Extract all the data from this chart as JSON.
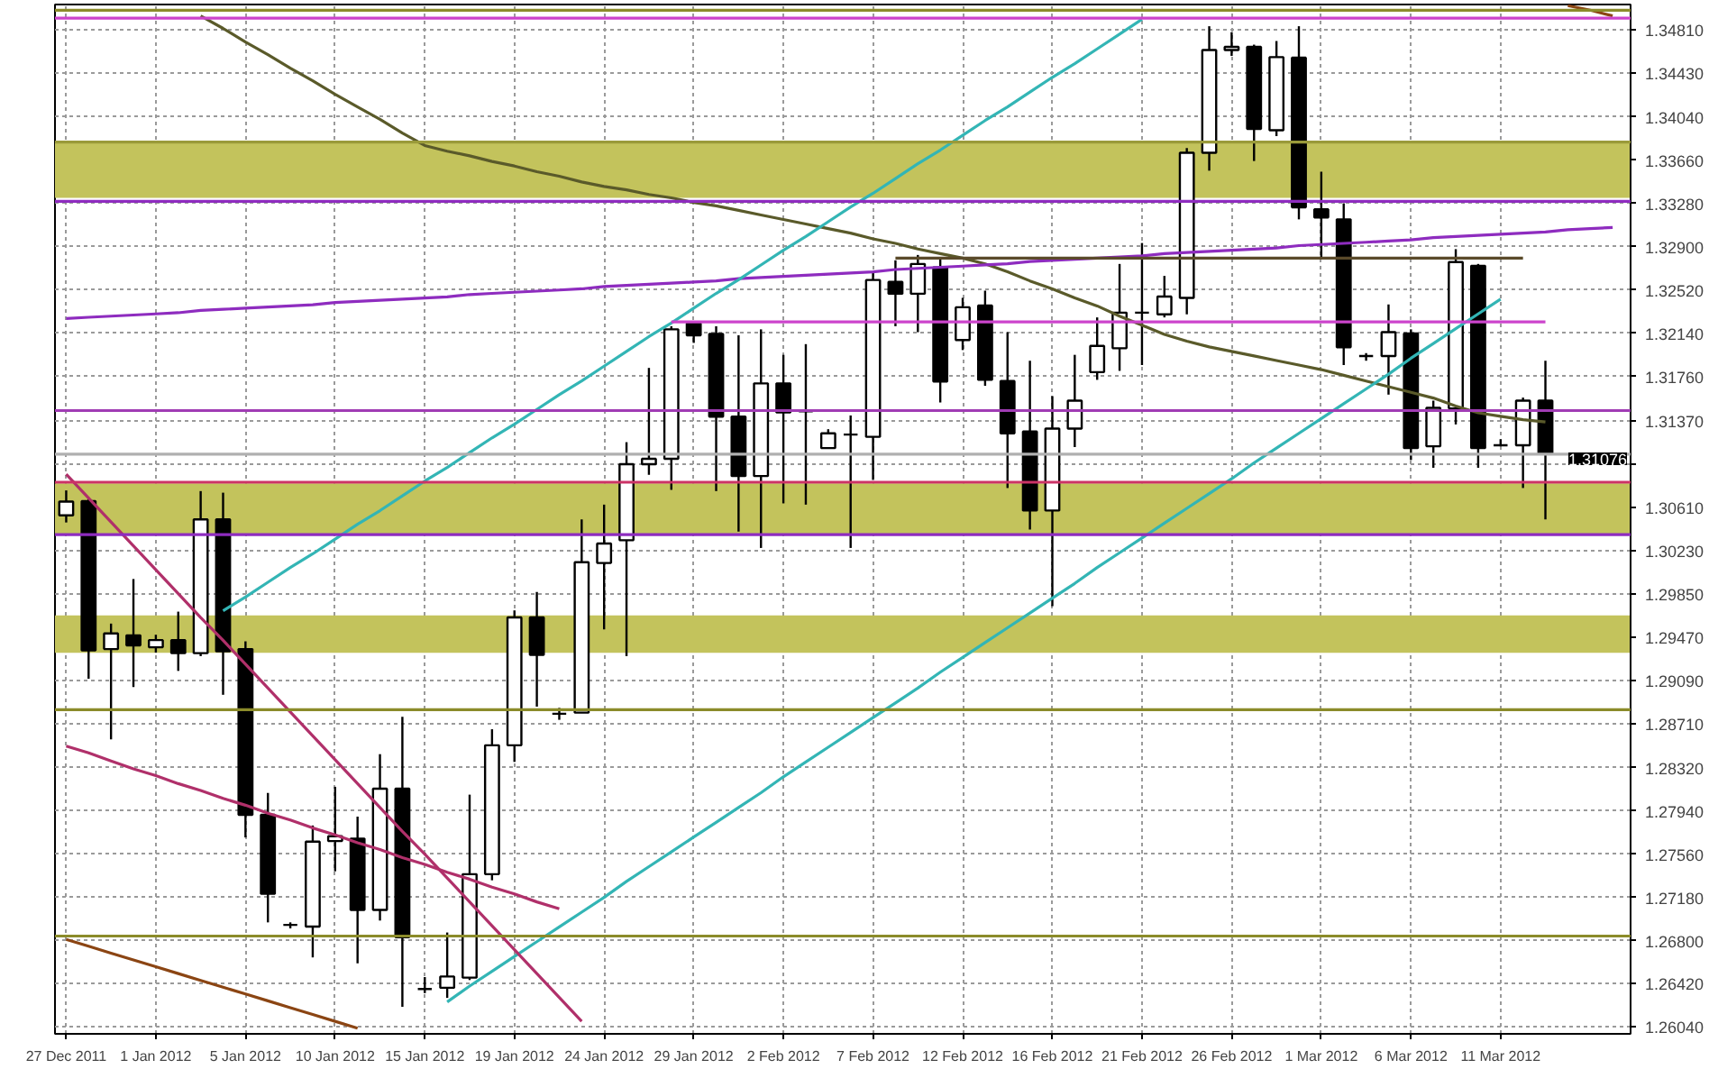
{
  "chart_data": {
    "type": "candlestick",
    "categories": [
      "27 Dec 2011",
      null,
      null,
      null,
      "1 Jan 2012",
      null,
      null,
      null,
      "5 Jan 2012",
      null,
      null,
      null,
      "10 Jan 2012",
      null,
      null,
      null,
      "15 Jan 2012",
      null,
      null,
      null,
      "19 Jan 2012",
      null,
      null,
      null,
      "24 Jan 2012",
      null,
      null,
      null,
      "29 Jan 2012",
      null,
      null,
      null,
      "2 Feb 2012",
      null,
      null,
      null,
      "7 Feb 2012",
      null,
      null,
      null,
      "12 Feb 2012",
      null,
      null,
      null,
      "16 Feb 2012",
      null,
      null,
      null,
      "21 Feb 2012",
      null,
      null,
      null,
      "26 Feb 2012",
      null,
      null,
      null,
      "1 Mar 2012",
      null,
      null,
      null,
      "6 Mar 2012",
      null,
      null,
      null,
      "11 Mar 2012",
      null,
      null,
      null,
      null,
      null
    ],
    "ohlc": [
      [
        1.30539,
        1.30758,
        1.30476,
        1.3066
      ],
      [
        1.30664,
        1.30696,
        1.29102,
        1.29352
      ],
      [
        1.29363,
        1.29587,
        1.28569,
        1.295
      ],
      [
        1.29484,
        1.29979,
        1.29029,
        1.29395
      ],
      [
        1.29379,
        1.29489,
        1.29332,
        1.29442
      ],
      [
        1.29442,
        1.29692,
        1.29171,
        1.29327
      ],
      [
        1.29327,
        1.30752,
        1.29301,
        1.30503
      ],
      [
        1.30503,
        1.30738,
        1.28961,
        1.29343
      ],
      [
        1.29363,
        1.29431,
        1.27707,
        1.27906
      ],
      [
        1.27906,
        1.28098,
        1.2696,
        1.27211
      ],
      [
        1.26938,
        1.2696,
        1.26907,
        1.26938
      ],
      [
        1.26923,
        1.27812,
        1.26652,
        1.2767
      ],
      [
        1.27675,
        1.28152,
        1.27409,
        1.27717
      ],
      [
        1.27697,
        1.2789,
        1.266,
        1.2707
      ],
      [
        1.2707,
        1.28439,
        1.26976,
        1.28136
      ],
      [
        1.28136,
        1.28768,
        1.26217,
        1.26829
      ],
      [
        1.26374,
        1.26479,
        1.26338,
        1.26374
      ],
      [
        1.26385,
        1.26871,
        1.26296,
        1.26484
      ],
      [
        1.26474,
        1.28083,
        1.26453,
        1.27384
      ],
      [
        1.27384,
        1.28658,
        1.2733,
        1.28517
      ],
      [
        1.28517,
        1.29703,
        1.28371,
        1.29641
      ],
      [
        1.29641,
        1.29865,
        1.28857,
        1.29312
      ],
      [
        1.28794,
        1.28846,
        1.28741,
        1.28794
      ],
      [
        1.28804,
        1.30503,
        1.28804,
        1.30127
      ],
      [
        1.3012,
        1.30633,
        1.29536,
        1.30291
      ],
      [
        1.3032,
        1.31182,
        1.29301,
        1.30989
      ],
      [
        1.30989,
        1.31835,
        1.30895,
        1.31036
      ],
      [
        1.31036,
        1.32201,
        1.30763,
        1.32174
      ],
      [
        1.32227,
        1.32243,
        1.32055,
        1.32122
      ],
      [
        1.32133,
        1.32201,
        1.30752,
        1.31406
      ],
      [
        1.31406,
        1.32122,
        1.30396,
        1.30884
      ],
      [
        1.30884,
        1.32174,
        1.30252,
        1.31699
      ],
      [
        1.31699,
        1.3195,
        1.30644,
        1.31443
      ],
      [
        1.31453,
        1.32044,
        1.30633,
        1.31453
      ],
      [
        1.3113,
        1.31296,
        1.3113,
        1.3126
      ],
      [
        1.31249,
        1.31417,
        1.30252,
        1.31249
      ],
      [
        1.31229,
        1.32671,
        1.3085,
        1.32608
      ],
      [
        1.32592,
        1.32781,
        1.32201,
        1.32487
      ],
      [
        1.32487,
        1.32828,
        1.32149,
        1.32749
      ],
      [
        1.32718,
        1.32796,
        1.31531,
        1.31715
      ],
      [
        1.3208,
        1.32451,
        1.31992,
        1.32368
      ],
      [
        1.32384,
        1.32514,
        1.31678,
        1.3173
      ],
      [
        1.31719,
        1.32149,
        1.30779,
        1.3126
      ],
      [
        1.31276,
        1.31898,
        1.30414,
        1.30581
      ],
      [
        1.30581,
        1.31587,
        1.2974,
        1.31302
      ],
      [
        1.31302,
        1.3195,
        1.31139,
        1.31547
      ],
      [
        1.31798,
        1.32279,
        1.3173,
        1.32028
      ],
      [
        1.32008,
        1.32749,
        1.31809,
        1.32321
      ],
      [
        1.32321,
        1.32933,
        1.3186,
        1.32321
      ],
      [
        1.32306,
        1.32644,
        1.32279,
        1.32462
      ],
      [
        1.32451,
        1.33768,
        1.32306,
        1.33726
      ],
      [
        1.33726,
        1.34839,
        1.33569,
        1.3463
      ],
      [
        1.3463,
        1.34787,
        1.34578,
        1.34657
      ],
      [
        1.34657,
        1.34677,
        1.33654,
        1.33936
      ],
      [
        1.33925,
        1.34709,
        1.33873,
        1.34567
      ],
      [
        1.34563,
        1.34839,
        1.33141,
        1.33246
      ],
      [
        1.3323,
        1.3356,
        1.32801,
        1.33157
      ],
      [
        1.33141,
        1.33282,
        1.3186,
        1.32017
      ],
      [
        1.31939,
        1.31965,
        1.31898,
        1.31939
      ],
      [
        1.31939,
        1.32393,
        1.316,
        1.32149
      ],
      [
        1.32138,
        1.32174,
        1.31025,
        1.3113
      ],
      [
        1.31146,
        1.31547,
        1.30957,
        1.31484
      ],
      [
        1.31479,
        1.32879,
        1.31338,
        1.32765
      ],
      [
        1.32733,
        1.32749,
        1.30957,
        1.3113
      ],
      [
        1.31155,
        1.31208,
        1.31146,
        1.31155
      ],
      [
        1.31155,
        1.31574,
        1.30779,
        1.31547
      ],
      [
        1.31547,
        1.31898,
        1.30503,
        1.31077
      ],
      null,
      null,
      null
    ],
    "series": [
      {
        "type": "line",
        "color": "#5a5a2a",
        "values": [
          null,
          null,
          null,
          null,
          null,
          null,
          1.3493,
          1.3482,
          1.347,
          1.3459,
          1.3447,
          1.3436,
          1.3424,
          1.3413,
          1.3402,
          1.339,
          1.3379,
          1.3374,
          1.337,
          1.3365,
          1.3361,
          1.3356,
          1.3352,
          1.3347,
          1.3343,
          1.334,
          1.3336,
          1.3333,
          1.3329,
          1.3326,
          1.3322,
          1.3318,
          1.3314,
          1.331,
          1.3306,
          1.3302,
          1.3297,
          1.3293,
          1.3288,
          1.3284,
          1.328,
          1.3275,
          1.3268,
          1.326,
          1.3253,
          1.3245,
          1.3238,
          1.3229,
          1.3221,
          1.3213,
          1.3207,
          1.3202,
          1.3198,
          1.3194,
          1.319,
          1.3186,
          1.3182,
          1.3177,
          1.3172,
          1.3167,
          1.3162,
          1.3157,
          1.315,
          1.3144,
          1.3141,
          1.3138,
          1.3136,
          null,
          null,
          null
        ]
      },
      {
        "type": "line",
        "color": "#8e2cbf",
        "values": [
          1.3227,
          1.3228,
          1.3229,
          1.323,
          1.3231,
          1.3232,
          1.3234,
          1.3235,
          1.3236,
          1.3237,
          1.3238,
          1.3239,
          1.3241,
          1.3242,
          1.3243,
          1.3244,
          1.3245,
          1.3246,
          1.3248,
          1.3249,
          1.325,
          1.3251,
          1.3252,
          1.3253,
          1.3255,
          1.3256,
          1.3257,
          1.3258,
          1.3259,
          1.326,
          1.3262,
          1.3263,
          1.3264,
          1.3265,
          1.3266,
          1.3267,
          1.3268,
          1.327,
          1.3271,
          1.3272,
          1.3273,
          1.3274,
          1.3275,
          1.3277,
          1.3278,
          1.3279,
          1.328,
          1.3281,
          1.3282,
          1.3284,
          1.3285,
          1.3286,
          1.3287,
          1.3288,
          1.3289,
          1.3291,
          1.3292,
          1.3293,
          1.3294,
          1.3295,
          1.3296,
          1.3298,
          1.3299,
          1.33,
          1.3301,
          1.3302,
          1.3303,
          1.3305,
          1.3306,
          1.3307
        ]
      },
      {
        "type": "line",
        "color": "#33b5b5",
        "values": [
          null,
          null,
          null,
          null,
          null,
          null,
          null,
          1.297,
          1.2982,
          1.2995,
          1.3008,
          1.302,
          1.3033,
          1.3046,
          1.3058,
          1.3071,
          1.3084,
          1.3096,
          1.3109,
          1.3122,
          1.3134,
          1.3147,
          1.316,
          1.3172,
          1.3185,
          1.3198,
          1.3211,
          1.3223,
          1.3236,
          1.3249,
          1.3261,
          1.3274,
          1.3287,
          1.3299,
          1.3312,
          1.3325,
          1.3337,
          1.335,
          1.3363,
          1.3375,
          1.3388,
          1.3401,
          1.3413,
          1.3426,
          1.3439,
          1.3451,
          1.3464,
          1.3477,
          1.349,
          null,
          null,
          null,
          null,
          null,
          null,
          null,
          null,
          null,
          null,
          null,
          null,
          null,
          null,
          null,
          null,
          null,
          null,
          null,
          null,
          null
        ]
      },
      {
        "type": "line",
        "color": "#33b5b5",
        "values": [
          null,
          null,
          null,
          null,
          null,
          null,
          null,
          null,
          null,
          null,
          null,
          null,
          null,
          null,
          null,
          null,
          null,
          1.2626,
          1.264,
          1.2653,
          1.2666,
          1.2679,
          1.2692,
          1.2705,
          1.2718,
          1.2732,
          1.2745,
          1.2758,
          1.2771,
          1.2784,
          1.2797,
          1.281,
          1.2824,
          1.2837,
          1.285,
          1.2863,
          1.2876,
          1.2889,
          1.2902,
          1.2916,
          1.2929,
          1.2942,
          1.2955,
          1.2968,
          1.2981,
          1.2994,
          1.3008,
          1.3021,
          1.3034,
          1.3047,
          1.306,
          1.3073,
          1.3086,
          1.31,
          1.3113,
          1.3126,
          1.3139,
          1.3152,
          1.3165,
          1.3178,
          1.3192,
          1.3205,
          1.3218,
          1.3231,
          1.3244,
          null,
          null,
          null,
          null,
          null
        ]
      },
      {
        "type": "line",
        "color": "#b0306a",
        "values": [
          1.309,
          1.3069,
          1.3048,
          1.3027,
          1.3006,
          1.2985,
          1.2964,
          1.2944,
          1.2923,
          1.2902,
          1.2881,
          1.286,
          1.2839,
          1.2818,
          1.2797,
          1.2776,
          1.2756,
          1.2735,
          1.2714,
          1.2693,
          1.2672,
          1.2651,
          1.263,
          1.2609,
          null,
          null,
          null,
          null,
          null,
          null,
          null,
          null,
          null,
          null,
          null,
          null,
          null,
          null,
          null,
          null,
          null,
          null,
          null,
          null,
          null,
          null,
          null,
          null,
          null,
          null,
          null,
          null,
          null,
          null,
          null,
          null,
          null,
          null,
          null,
          null,
          null,
          null,
          null,
          null,
          null,
          null,
          null,
          null,
          null,
          null
        ]
      },
      {
        "type": "line",
        "color": "#b0306a",
        "values": [
          1.2851,
          1.2845,
          1.2838,
          1.2831,
          1.2825,
          1.2818,
          1.2812,
          1.2805,
          1.2799,
          1.2792,
          1.2786,
          1.2779,
          1.2773,
          1.2766,
          1.276,
          1.2753,
          1.2747,
          1.274,
          1.2734,
          1.2727,
          1.2721,
          1.2714,
          1.2708,
          null,
          null,
          null,
          null,
          null,
          null,
          null,
          null,
          null,
          null,
          null,
          null,
          null,
          null,
          null,
          null,
          null,
          null,
          null,
          null,
          null,
          null,
          null,
          null,
          null,
          null,
          null,
          null,
          null,
          null,
          null,
          null,
          null,
          null,
          null,
          null,
          null,
          null,
          null,
          null,
          null,
          null,
          null,
          null,
          null,
          null,
          null
        ]
      },
      {
        "type": "line",
        "color": "#8b4513",
        "values": [
          1.2681,
          1.2675,
          1.2669,
          1.2663,
          1.2657,
          1.2651,
          1.2645,
          1.2639,
          1.2633,
          1.2627,
          1.2621,
          1.2615,
          1.2609,
          1.2603,
          null,
          null,
          null,
          null,
          null,
          null,
          null,
          null,
          null,
          null,
          null,
          null,
          null,
          null,
          null,
          null,
          null,
          null,
          null,
          null,
          null,
          null,
          null,
          null,
          null,
          null,
          null,
          null,
          null,
          null,
          null,
          null,
          null,
          null,
          null,
          null,
          null,
          null,
          null,
          null,
          null,
          null,
          null,
          null,
          null,
          null,
          null,
          null,
          null,
          null,
          null,
          null,
          null,
          null,
          null,
          null
        ]
      },
      {
        "type": "line",
        "color": "#8b4513",
        "values": [
          null,
          null,
          null,
          null,
          null,
          null,
          null,
          null,
          null,
          null,
          null,
          null,
          null,
          null,
          null,
          null,
          null,
          null,
          null,
          null,
          null,
          null,
          null,
          null,
          null,
          null,
          null,
          null,
          null,
          null,
          null,
          null,
          null,
          null,
          null,
          null,
          null,
          null,
          null,
          null,
          null,
          null,
          null,
          null,
          null,
          null,
          null,
          null,
          null,
          null,
          null,
          null,
          null,
          null,
          null,
          null,
          null,
          null,
          null,
          null,
          null,
          null,
          null,
          null,
          null,
          null,
          null,
          1.3502,
          1.3498,
          1.3493
        ]
      },
      {
        "type": "line",
        "color": "#5a4a2a",
        "values": [
          null,
          null,
          null,
          null,
          null,
          null,
          null,
          null,
          null,
          null,
          null,
          null,
          null,
          null,
          null,
          null,
          null,
          null,
          null,
          null,
          null,
          null,
          null,
          null,
          null,
          null,
          null,
          null,
          null,
          null,
          null,
          null,
          null,
          null,
          null,
          null,
          null,
          1.328,
          1.328,
          1.328,
          1.328,
          1.328,
          1.328,
          1.328,
          1.328,
          1.328,
          1.328,
          1.328,
          1.328,
          1.328,
          1.328,
          1.328,
          1.328,
          1.328,
          1.328,
          1.328,
          1.328,
          1.328,
          1.328,
          1.328,
          1.328,
          1.328,
          1.328,
          1.328,
          1.328,
          1.328,
          null,
          null,
          null,
          null
        ]
      },
      {
        "type": "line",
        "color": "#cc44cc",
        "values": [
          null,
          null,
          null,
          null,
          null,
          null,
          null,
          null,
          null,
          null,
          null,
          null,
          null,
          null,
          null,
          null,
          null,
          null,
          null,
          null,
          null,
          null,
          null,
          null,
          null,
          null,
          null,
          1.3224,
          1.3224,
          1.3224,
          1.3224,
          1.3224,
          1.3224,
          1.3224,
          1.3224,
          1.3224,
          1.3224,
          1.3224,
          1.3224,
          1.3224,
          1.3224,
          1.3224,
          1.3224,
          1.3224,
          1.3224,
          1.3224,
          1.3224,
          1.3224,
          1.3224,
          1.3224,
          1.3224,
          1.3224,
          1.3224,
          1.3224,
          1.3224,
          1.3224,
          1.3224,
          1.3224,
          1.3224,
          1.3224,
          1.3224,
          1.3224,
          1.3224,
          1.3224,
          1.3224,
          1.3224,
          1.3224,
          null,
          null,
          null
        ]
      }
    ],
    "ref_lines": [
      {
        "axis": "y",
        "value": 1.3491,
        "color": "#cc44cc"
      },
      {
        "axis": "y",
        "value": 1.3498,
        "color": "#8b8b2a"
      },
      {
        "axis": "y",
        "value": 1.3382,
        "color": "#9a9a3a"
      },
      {
        "axis": "y",
        "value": 1.333,
        "color": "#8e2cbf"
      },
      {
        "axis": "y",
        "value": 1.3146,
        "color": "#a03cb4"
      },
      {
        "axis": "y",
        "value": 1.31076,
        "label": "1.31076",
        "color": "#b0b0b0"
      },
      {
        "axis": "y",
        "value": 1.3083,
        "color": "#cc3366"
      },
      {
        "axis": "y",
        "value": 1.3037,
        "color": "#8e2cbf"
      },
      {
        "axis": "y",
        "value": 1.2883,
        "color": "#8b8b2a"
      },
      {
        "axis": "y",
        "value": 1.2684,
        "color": "#8b8b2a"
      }
    ],
    "bands": [
      {
        "axis": "y",
        "from": 1.3333,
        "to": 1.3382,
        "color": "#c3c35c"
      },
      {
        "axis": "y",
        "from": 1.3037,
        "to": 1.3082,
        "color": "#c3c35c"
      },
      {
        "axis": "y",
        "from": 1.2933,
        "to": 1.2966,
        "color": "#c3c35c"
      }
    ],
    "ylim": [
      1.2598,
      1.3503
    ],
    "yticks": [
      {
        "value": 1.3481,
        "label": "1.34810"
      },
      {
        "value": 1.3443,
        "label": "1.34430"
      },
      {
        "value": 1.3404,
        "label": "1.34040"
      },
      {
        "value": 1.3366,
        "label": "1.33660"
      },
      {
        "value": 1.3328,
        "label": "1.33280"
      },
      {
        "value": 1.329,
        "label": "1.32900"
      },
      {
        "value": 1.3252,
        "label": "1.32520"
      },
      {
        "value": 1.3214,
        "label": "1.32140"
      },
      {
        "value": 1.3176,
        "label": "1.31760"
      },
      {
        "value": 1.3137,
        "label": "1.31370"
      },
      {
        "value": 1.3099,
        "label": null
      },
      {
        "value": 1.3061,
        "label": "1.30610"
      },
      {
        "value": 1.3023,
        "label": "1.30230"
      },
      {
        "value": 1.2985,
        "label": "1.29850"
      },
      {
        "value": 1.2947,
        "label": "1.29470"
      },
      {
        "value": 1.2909,
        "label": "1.29090"
      },
      {
        "value": 1.2871,
        "label": "1.28710"
      },
      {
        "value": 1.2832,
        "label": "1.28320"
      },
      {
        "value": 1.2794,
        "label": "1.27940"
      },
      {
        "value": 1.2756,
        "label": "1.27560"
      },
      {
        "value": 1.2718,
        "label": "1.27180"
      },
      {
        "value": 1.268,
        "label": "1.26800"
      },
      {
        "value": 1.2642,
        "label": "1.26420"
      },
      {
        "value": 1.2604,
        "label": "1.26040"
      }
    ],
    "grid": true
  }
}
